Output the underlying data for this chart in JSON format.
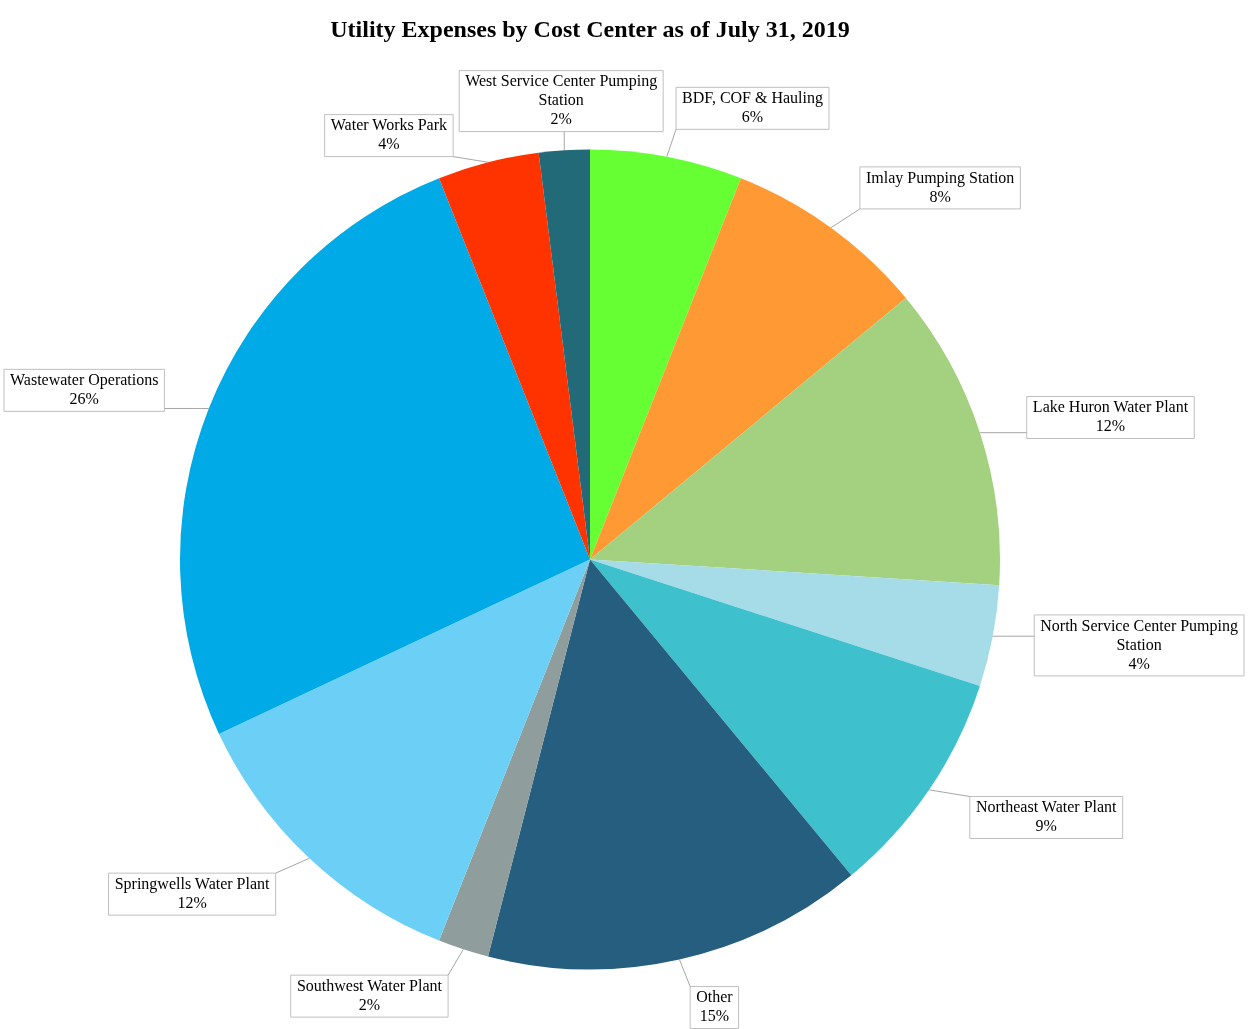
{
  "chart_data": {
    "type": "pie",
    "title": "Utility Expenses by Cost Center as of July 31, 2019",
    "categories": [
      "BDF, COF & Hauling",
      "Imlay Pumping Station",
      "Lake Huron Water Plant",
      "North Service Center Pumping Station",
      "Northeast Water Plant",
      "Other",
      "Southwest Water Plant",
      "Springwells Water Plant",
      "Wastewater Operations",
      "Water Works Park",
      "West Service Center Pumping Station"
    ],
    "values": [
      6,
      8,
      12,
      4,
      9,
      15,
      2,
      12,
      26,
      4,
      2
    ],
    "colors": [
      "#66ff33",
      "#ff9933",
      "#a3d17f",
      "#a6dbe8",
      "#3ec0cd",
      "#255e7e",
      "#8f9e9c",
      "#6ccff6",
      "#00aae6",
      "#ff3300",
      "#226a78"
    ],
    "value_labels": [
      "6%",
      "8%",
      "12%",
      "4%",
      "9%",
      "15%",
      "2%",
      "12%",
      "26%",
      "4%",
      "2%"
    ],
    "legend": false
  }
}
